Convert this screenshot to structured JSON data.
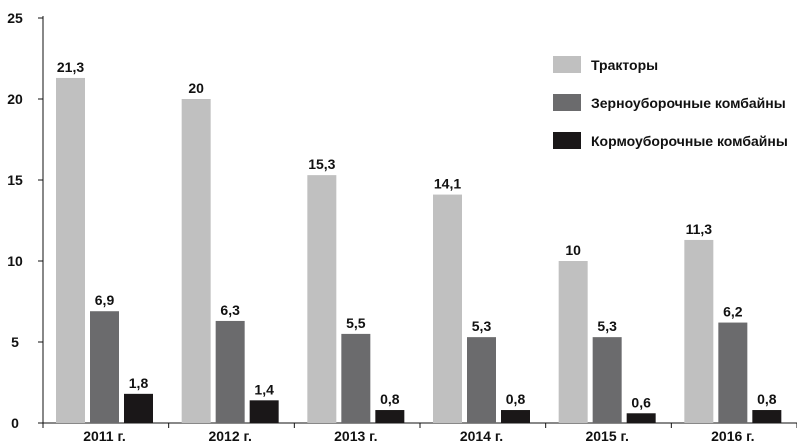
{
  "chart_data": {
    "type": "bar",
    "categories": [
      "2011 г.",
      "2012 г.",
      "2013 г.",
      "2014 г.",
      "2015 г.",
      "2016 г."
    ],
    "series": [
      {
        "name": "Тракторы",
        "color": "#c0c0c0",
        "values": [
          21.3,
          20,
          15.3,
          14.1,
          10,
          11.3
        ],
        "labels": [
          "21,3",
          "20",
          "15,3",
          "14,1",
          "10",
          "11,3"
        ]
      },
      {
        "name": "Зерноуборочные комбайны",
        "color": "#6b6b6d",
        "values": [
          6.9,
          6.3,
          5.5,
          5.3,
          5.3,
          6.2
        ],
        "labels": [
          "6,9",
          "6,3",
          "5,5",
          "5,3",
          "5,3",
          "6,2"
        ]
      },
      {
        "name": "Кормоуборочные комбайны",
        "color": "#1a1718",
        "values": [
          1.8,
          1.4,
          0.8,
          0.8,
          0.6,
          0.8
        ],
        "labels": [
          "1,8",
          "1,4",
          "0,8",
          "0,8",
          "0,6",
          "0,8"
        ]
      }
    ],
    "y_ticks": [
      0,
      5,
      10,
      15,
      20,
      25
    ],
    "y_tick_labels": [
      "0",
      "5",
      "10",
      "15",
      "20",
      "25"
    ],
    "ylim": [
      0,
      25
    ],
    "title": "",
    "xlabel": "",
    "ylabel": "",
    "grid": false,
    "legend_position": "top-right"
  }
}
